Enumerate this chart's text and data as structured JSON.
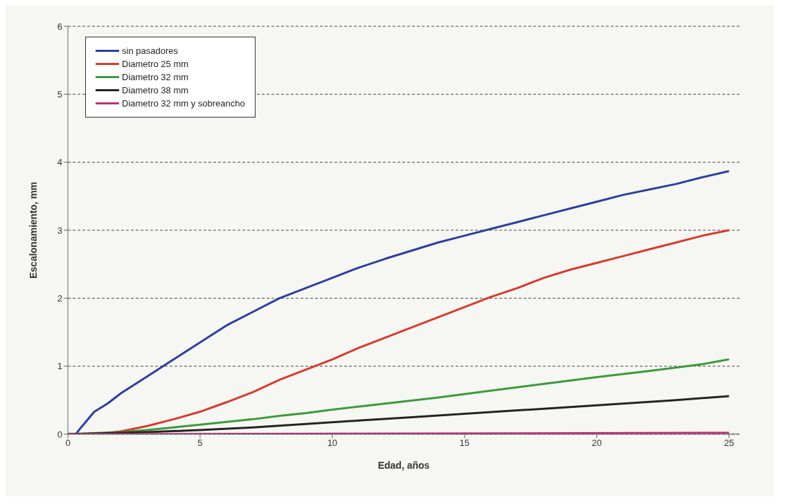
{
  "chart_data": {
    "type": "line",
    "xlabel": "Edad, años",
    "ylabel": "Escalonamiento, mm",
    "xlim": [
      0,
      25.4
    ],
    "xticks": [
      0,
      5,
      10,
      15,
      20,
      25
    ],
    "ylim": [
      0,
      6
    ],
    "yticks": [
      0,
      1,
      2,
      3,
      4,
      5,
      6
    ],
    "grid": "y",
    "legend": "top left",
    "marker": "none",
    "line_style": "solid",
    "series": [
      {
        "name": "sin pasadores",
        "color": "#2b3e9c",
        "x": [
          0.3,
          0.5,
          1,
          1.5,
          2,
          3,
          4,
          5,
          6,
          7,
          8,
          9,
          10,
          11,
          12,
          13,
          14,
          15,
          16,
          17,
          18,
          19,
          20,
          21,
          22,
          23,
          24,
          25
        ],
        "values": [
          0,
          0.1,
          0.33,
          0.45,
          0.6,
          0.85,
          1.1,
          1.35,
          1.6,
          1.8,
          2.0,
          2.15,
          2.3,
          2.45,
          2.58,
          2.7,
          2.82,
          2.92,
          3.02,
          3.12,
          3.22,
          3.32,
          3.42,
          3.52,
          3.6,
          3.68,
          3.78,
          3.87
        ]
      },
      {
        "name": "Diametro 25 mm",
        "color": "#d8392b",
        "x": [
          0,
          1,
          2,
          3,
          4,
          5,
          6,
          7,
          8,
          9,
          10,
          11,
          12,
          13,
          14,
          15,
          16,
          17,
          18,
          19,
          20,
          21,
          22,
          23,
          24,
          25
        ],
        "values": [
          0,
          0,
          0.04,
          0.12,
          0.22,
          0.33,
          0.47,
          0.62,
          0.8,
          0.95,
          1.1,
          1.27,
          1.42,
          1.57,
          1.72,
          1.87,
          2.02,
          2.15,
          2.3,
          2.42,
          2.52,
          2.62,
          2.72,
          2.82,
          2.92,
          3.0
        ]
      },
      {
        "name": "Diametro 32 mm",
        "color": "#3a9a3a",
        "x": [
          0,
          2,
          3,
          4,
          5,
          6,
          7,
          8,
          9,
          10,
          12,
          14,
          16,
          18,
          20,
          22,
          24,
          25
        ],
        "values": [
          0,
          0.03,
          0.06,
          0.1,
          0.14,
          0.18,
          0.22,
          0.27,
          0.31,
          0.36,
          0.45,
          0.54,
          0.64,
          0.74,
          0.84,
          0.93,
          1.03,
          1.1
        ]
      },
      {
        "name": "Diametro 38 mm",
        "color": "#222222",
        "x": [
          0,
          3,
          5,
          7,
          9,
          11,
          13,
          15,
          17,
          19,
          21,
          23,
          25
        ],
        "values": [
          0,
          0.03,
          0.06,
          0.1,
          0.15,
          0.2,
          0.25,
          0.3,
          0.35,
          0.4,
          0.45,
          0.5,
          0.56
        ]
      },
      {
        "name": "Diametro 32 mm y sobreancho",
        "color": "#c0307a",
        "x": [
          0,
          25
        ],
        "values": [
          0,
          0.02
        ]
      }
    ]
  }
}
